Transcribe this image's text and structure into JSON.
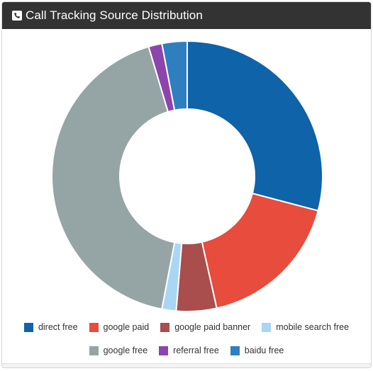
{
  "widget": {
    "title": "Call Tracking Source Distribution",
    "icon": "phone-icon"
  },
  "chart_data": {
    "type": "pie",
    "donut": true,
    "legend_position": "bottom",
    "series": [
      {
        "name": "direct free",
        "value": 29.1,
        "color": "#0e63a9"
      },
      {
        "name": "google paid",
        "value": 17.4,
        "color": "#e74c3c"
      },
      {
        "name": "google paid banner",
        "value": 4.8,
        "color": "#a94d4d"
      },
      {
        "name": "mobile search free",
        "value": 1.7,
        "color": "#a9d6f5"
      },
      {
        "name": "google free",
        "value": 42.4,
        "color": "#95a5a6"
      },
      {
        "name": "referral free",
        "value": 1.6,
        "color": "#8e44ad"
      },
      {
        "name": "baidu free",
        "value": 3.0,
        "color": "#2e7fc0"
      }
    ]
  }
}
